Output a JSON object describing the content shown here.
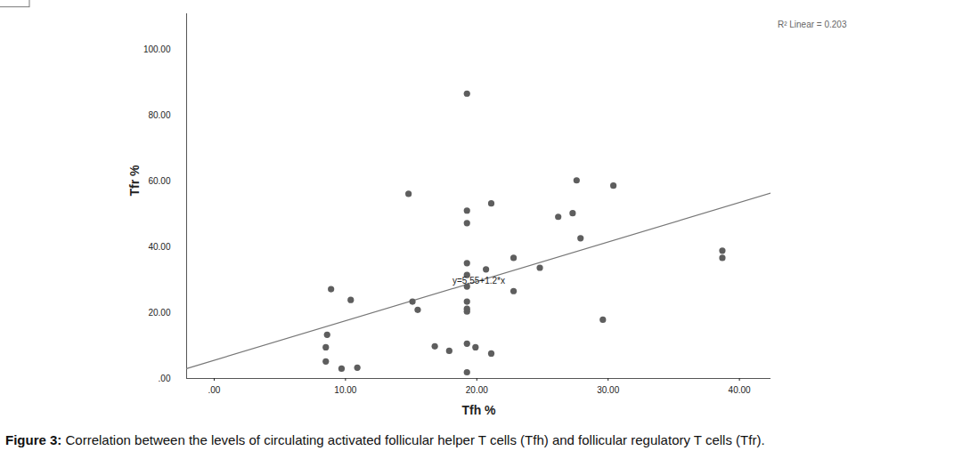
{
  "chart_data": {
    "type": "scatter",
    "caption": "Figure 3: Correlation between the levels of circulating activated follicular helper T cells (Tfh) and follicular regulatory T cells (Tfr).",
    "x_label": "Tfh %",
    "y_label": "Tfr %",
    "x": [
      19.25,
      14.8,
      27.6,
      30.4,
      21.1,
      19.25,
      19.25,
      26.2,
      27.3,
      27.9,
      38.7,
      38.7,
      22.8,
      19.25,
      24.8,
      20.7,
      8.9,
      10.4,
      22.8,
      19.25,
      15.1,
      15.5,
      19.25,
      19.25,
      19.25,
      19.25,
      29.6,
      8.6,
      8.5,
      16.8,
      17.9,
      19.25,
      19.9,
      21.1,
      8.5,
      9.7,
      10.9,
      19.25
    ],
    "y": [
      86.7,
      56.2,
      60.3,
      58.7,
      53.3,
      51.1,
      47.3,
      49.2,
      50.3,
      42.7,
      38.9,
      36.7,
      36.7,
      35.1,
      33.7,
      33.2,
      27.2,
      23.9,
      26.6,
      23.4,
      23.4,
      20.9,
      21.2,
      20.4,
      28.0,
      31.5,
      17.9,
      13.3,
      9.5,
      9.8,
      8.4,
      10.6,
      9.5,
      7.6,
      5.2,
      3.0,
      3.3,
      1.9
    ],
    "color": "#5e5e5e",
    "marker": "circle",
    "regression": {
      "intercept": 5.55,
      "slope": 1.2,
      "label": "y=5.55+1.2*x",
      "r2_label": "R² Linear = 0.203"
    },
    "xlim": [
      -2.1,
      42.4
    ],
    "ylim": [
      0,
      111
    ],
    "xticks": [
      {
        "value": 0,
        "label": ".00"
      },
      {
        "value": 10,
        "label": "10.00"
      },
      {
        "value": 20,
        "label": "20.00"
      },
      {
        "value": 30,
        "label": "30.00"
      },
      {
        "value": 40,
        "label": "40.00"
      }
    ],
    "yticks": [
      {
        "value": 0,
        "label": ".00"
      },
      {
        "value": 20,
        "label": "20.00"
      },
      {
        "value": 40,
        "label": "40.00"
      },
      {
        "value": 60,
        "label": "60.00"
      },
      {
        "value": 80,
        "label": "80.00"
      },
      {
        "value": 100,
        "label": "100.00"
      }
    ],
    "grid": false
  }
}
